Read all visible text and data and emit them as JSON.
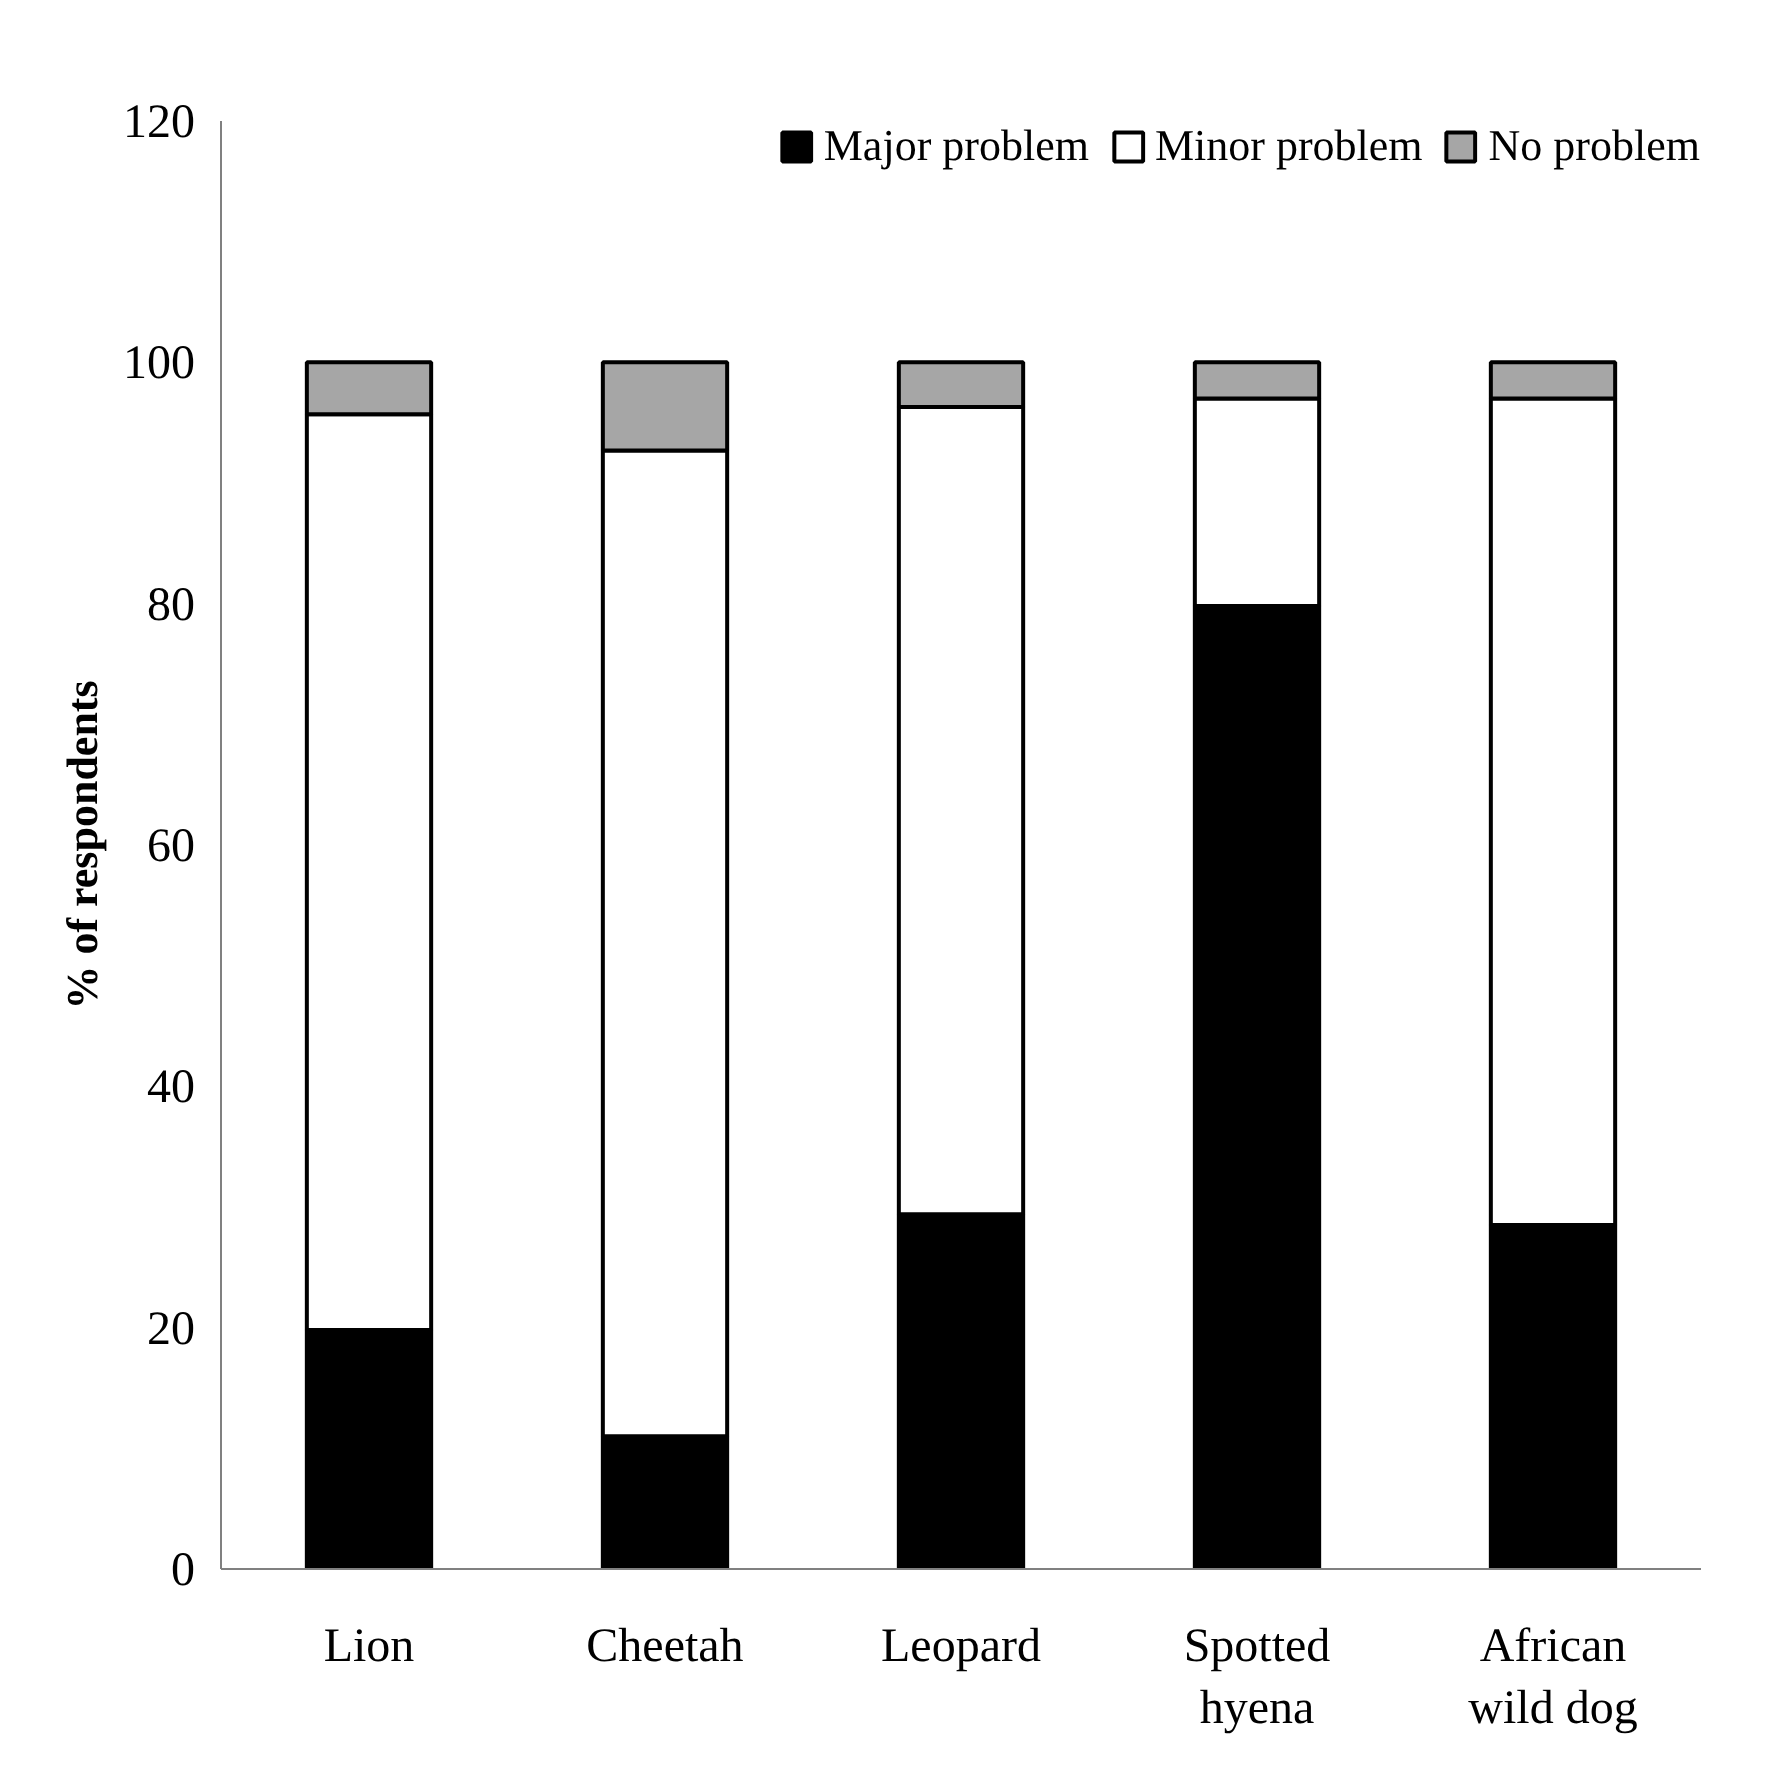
{
  "chart_data": {
    "type": "bar",
    "stacked": true,
    "ylabel": "% of respondents",
    "categories": [
      "Lion",
      "Cheetah",
      "Leopard",
      "Spotted hyena",
      "African wild dog"
    ],
    "series": [
      {
        "name": "Major problem",
        "color": "#000000",
        "values": [
          19.8,
          11.0,
          29.4,
          79.8,
          28.5
        ]
      },
      {
        "name": "Minor problem",
        "color": "#ffffff",
        "values": [
          75.9,
          81.7,
          66.9,
          17.2,
          68.5
        ]
      },
      {
        "name": "No problem",
        "color": "#a6a6a6",
        "values": [
          4.3,
          7.3,
          3.7,
          3.0,
          3.0
        ]
      }
    ],
    "ylim": [
      0,
      120
    ],
    "yticks": [
      0,
      20,
      40,
      60,
      80,
      100,
      120
    ],
    "grid": false,
    "legend": "top right"
  }
}
